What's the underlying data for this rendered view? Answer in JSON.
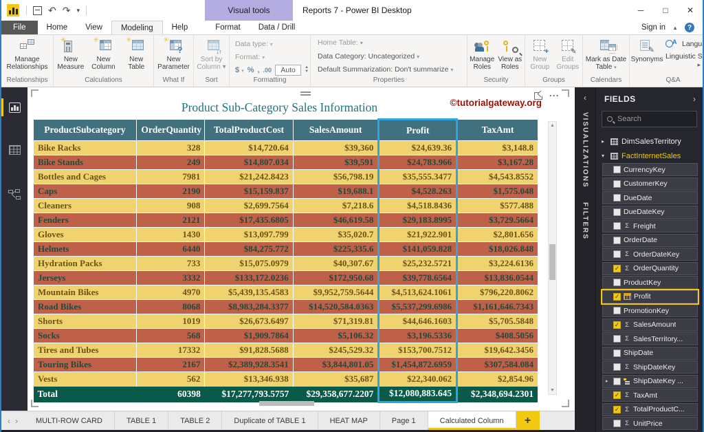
{
  "window": {
    "app_title": "Reports 7 - Power BI Desktop",
    "contextual_tab_group": "Visual tools",
    "sign_in": "Sign in"
  },
  "menu": {
    "file": "File",
    "home": "Home",
    "view": "View",
    "modeling": "Modeling",
    "help": "Help",
    "format": "Format",
    "data_drill": "Data / Drill",
    "active_tab": "Modeling"
  },
  "ribbon": {
    "relationships": {
      "label": "Relationships",
      "manage_relationships": "Manage Relationships"
    },
    "calculations": {
      "label": "Calculations",
      "new_measure": "New Measure",
      "new_column": "New Column",
      "new_table": "New Table"
    },
    "what_if": {
      "label": "What If",
      "new_parameter": "New Parameter"
    },
    "sort": {
      "label": "Sort",
      "sort_by_column": "Sort by Column"
    },
    "formatting": {
      "label": "Formatting",
      "data_type": "Data type:",
      "format": "Format:",
      "currency": "$",
      "percent": "%",
      "comma": ",",
      "decimals": ".00",
      "auto": "Auto"
    },
    "properties": {
      "label": "Properties",
      "home_table": "Home Table:",
      "data_category": "Data Category: Uncategorized",
      "default_summarization": "Default Summarization: Don't summarize"
    },
    "security": {
      "label": "Security",
      "manage_roles": "Manage Roles",
      "view_as_roles": "View as Roles"
    },
    "groups": {
      "label": "Groups",
      "new_group": "New Group",
      "edit_groups": "Edit Groups"
    },
    "calendars": {
      "label": "Calendars",
      "mark_as_date_table": "Mark as Date Table"
    },
    "qna": {
      "label": "Q&A",
      "synonyms": "Synonyms",
      "language": "Language",
      "linguistic_schema": "Linguistic Sc"
    }
  },
  "canvas": {
    "watermark": "©tutorialgateway.org"
  },
  "table": {
    "title": "Product Sub-Category Sales Information",
    "columns": [
      "ProductSubcategory",
      "OrderQuantity",
      "TotalProductCost",
      "SalesAmount",
      "Profit",
      "TaxAmt"
    ],
    "highlight_column_index": 4,
    "rows": [
      [
        "Bike Racks",
        "328",
        "$14,720.64",
        "$39,360",
        "$24,639.36",
        "$3,148.8"
      ],
      [
        "Bike Stands",
        "249",
        "$14,807.034",
        "$39,591",
        "$24,783.966",
        "$3,167.28"
      ],
      [
        "Bottles and Cages",
        "7981",
        "$21,242.8423",
        "$56,798.19",
        "$35,555.3477",
        "$4,543.8552"
      ],
      [
        "Caps",
        "2190",
        "$15,159.837",
        "$19,688.1",
        "$4,528.263",
        "$1,575.048"
      ],
      [
        "Cleaners",
        "908",
        "$2,699.7564",
        "$7,218.6",
        "$4,518.8436",
        "$577.488"
      ],
      [
        "Fenders",
        "2121",
        "$17,435.6805",
        "$46,619.58",
        "$29,183.8995",
        "$3,729.5664"
      ],
      [
        "Gloves",
        "1430",
        "$13,097.799",
        "$35,020.7",
        "$21,922.901",
        "$2,801.656"
      ],
      [
        "Helmets",
        "6440",
        "$84,275.772",
        "$225,335.6",
        "$141,059.828",
        "$18,026.848"
      ],
      [
        "Hydration Packs",
        "733",
        "$15,075.0979",
        "$40,307.67",
        "$25,232.5721",
        "$3,224.6136"
      ],
      [
        "Jerseys",
        "3332",
        "$133,172.0236",
        "$172,950.68",
        "$39,778.6564",
        "$13,836.0544"
      ],
      [
        "Mountain Bikes",
        "4970",
        "$5,439,135.4583",
        "$9,952,759.5644",
        "$4,513,624.1061",
        "$796,220.8062"
      ],
      [
        "Road Bikes",
        "8068",
        "$8,983,284.3377",
        "$14,520,584.0363",
        "$5,537,299.6986",
        "$1,161,646.7343"
      ],
      [
        "Shorts",
        "1019",
        "$26,673.6497",
        "$71,319.81",
        "$44,646.1603",
        "$5,705.5848"
      ],
      [
        "Socks",
        "568",
        "$1,909.7864",
        "$5,106.32",
        "$3,196.5336",
        "$408.5056"
      ],
      [
        "Tires and Tubes",
        "17332",
        "$91,828.5688",
        "$245,529.32",
        "$153,700.7512",
        "$19,642.3456"
      ],
      [
        "Touring Bikes",
        "2167",
        "$2,389,928.3541",
        "$3,844,801.05",
        "$1,454,872.6959",
        "$307,584.084"
      ],
      [
        "Vests",
        "562",
        "$13,346.938",
        "$35,687",
        "$22,340.062",
        "$2,854.96"
      ]
    ],
    "total": [
      "Total",
      "60398",
      "$17,277,793.5757",
      "$29,358,677.2207",
      "$12,080,883.645",
      "$2,348,694.2301"
    ]
  },
  "panels": {
    "visualizations": "VISUALIZATIONS",
    "filters": "FILTERS"
  },
  "fields_panel": {
    "title": "FIELDS",
    "search_placeholder": "Search",
    "tables": [
      {
        "name": "DimSalesTerritory",
        "expanded": false
      },
      {
        "name": "FactInternetSales",
        "expanded": true
      }
    ],
    "fields": [
      {
        "label": "CurrencyKey",
        "checked": false
      },
      {
        "label": "CustomerKey",
        "checked": false
      },
      {
        "label": "DueDate",
        "checked": false
      },
      {
        "label": "DueDateKey",
        "checked": false
      },
      {
        "label": "Freight",
        "checked": false,
        "sigma": true
      },
      {
        "label": "OrderDate",
        "checked": false
      },
      {
        "label": "OrderDateKey",
        "checked": false,
        "sigma": true
      },
      {
        "label": "OrderQuantity",
        "checked": true,
        "sigma": true
      },
      {
        "label": "ProductKey",
        "checked": false
      },
      {
        "label": "Profit",
        "checked": true,
        "calc": true,
        "highlight": true
      },
      {
        "label": "PromotionKey",
        "checked": false
      },
      {
        "label": "SalesAmount",
        "checked": true,
        "sigma": true
      },
      {
        "label": "SalesTerritory...",
        "checked": false,
        "sigma": true
      },
      {
        "label": "ShipDate",
        "checked": false
      },
      {
        "label": "ShipDateKey",
        "checked": false,
        "sigma": true
      },
      {
        "label": "ShipDateKey ...",
        "checked": false,
        "hierarchy": true,
        "expander": true
      },
      {
        "label": "TaxAmt",
        "checked": true,
        "sigma": true
      },
      {
        "label": "TotalProductC...",
        "checked": true,
        "sigma": true
      },
      {
        "label": "UnitPrice",
        "checked": false,
        "sigma": true
      }
    ]
  },
  "page_tabs": {
    "tabs": [
      "MULTI-ROW CARD",
      "TABLE 1",
      "TABLE 2",
      "Duplicate of TABLE 1",
      "HEAT MAP",
      "Page 1",
      "Calculated Column"
    ],
    "active": "Calculated Column",
    "add_label": "+"
  },
  "colors": {
    "accent_yellow": "#f2c811",
    "table_header_bg": "#41707f",
    "row_yellow": "#f0d26e",
    "row_terracotta": "#bf6148",
    "total_row_bg": "#0a5a4a",
    "profit_highlight_border": "#2aa6e0",
    "title_teal": "#1d7380",
    "watermark_red": "#9c1006",
    "contextual_tab_purple": "#b3ace1"
  }
}
